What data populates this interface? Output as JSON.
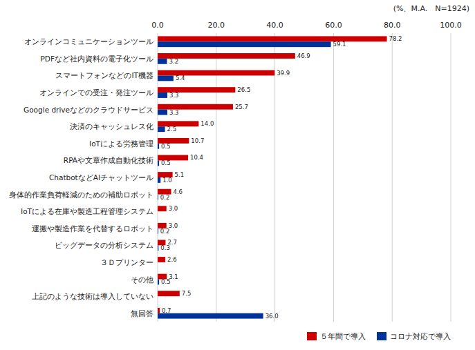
{
  "chart_data": {
    "type": "bar",
    "orientation": "horizontal",
    "title": "(%、M.A.　N=1924)",
    "categories": [
      "オンラインコミュニケーションツール",
      "PDFなど社内資料の電子化ツール",
      "スマートフォンなどのIT機器",
      "オンラインでの受注・発注ツール",
      "Google driveなどのクラウドサービス",
      "決済のキャッシュレス化",
      "IoTによる労務管理",
      "RPAや文章作成自動化技術",
      "ChatbotなどAIチャットツール",
      "身体的作業負荷軽減のための補助ロボット",
      "IoTによる在庫や製造工程管理システム",
      "運搬や製造作業を代替するロボット",
      "ビッグデータの分析システム",
      "３Ｄプリンター",
      "その他",
      "上記のような技術は導入していない",
      "無回答"
    ],
    "series": [
      {
        "name": "５年間で導入",
        "color": "#cc0000",
        "values": [
          78.2,
          46.9,
          39.9,
          26.5,
          25.7,
          14.0,
          10.7,
          10.4,
          5.1,
          4.6,
          3.0,
          3.0,
          2.7,
          2.6,
          3.1,
          7.5,
          0.7
        ],
        "value_labels": [
          "78.2",
          "46.9",
          "39.9",
          "26.5",
          "25.7",
          "14.0",
          "10.7",
          "10.4",
          "5.1",
          "4.6",
          "3.0",
          "3.0",
          "2.7",
          "2.6",
          "3.1",
          "7.5",
          "0.7"
        ]
      },
      {
        "name": "コロナ対応で導入",
        "color": "#003399",
        "values": [
          59.1,
          3.2,
          5.4,
          3.3,
          3.3,
          2.5,
          0.5,
          0.5,
          1.0,
          0.2,
          0.0,
          0.2,
          0.3,
          0.0,
          0.5,
          0.0,
          36.0
        ],
        "value_labels": [
          "59.1",
          "3.2",
          "5.4",
          "3.3",
          "3.3",
          "2.5",
          "0.5",
          "0.5",
          "1.0",
          "0.2",
          null,
          "0.2",
          "0.3",
          null,
          "0.5",
          null,
          "36.0"
        ]
      }
    ],
    "xlim": [
      0,
      100
    ],
    "xticks": [
      {
        "value": 0,
        "label": "0.0"
      },
      {
        "value": 20,
        "label": "20.0"
      },
      {
        "value": 40,
        "label": "40.0"
      },
      {
        "value": 60,
        "label": "60.0"
      },
      {
        "value": 80,
        "label": "80.0"
      },
      {
        "value": 100,
        "label": "100.0"
      }
    ],
    "grid": true,
    "legend": "lower right",
    "data_labels": true
  }
}
